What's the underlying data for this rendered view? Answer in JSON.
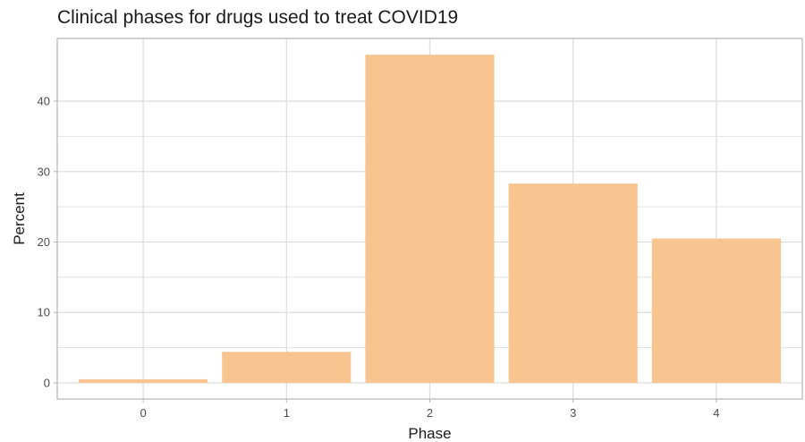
{
  "chart_data": {
    "type": "bar",
    "title": "Clinical phases for drugs used to treat COVID19",
    "xlabel": "Phase",
    "ylabel": "Percent",
    "categories": [
      "0",
      "1",
      "2",
      "3",
      "4"
    ],
    "values": [
      0.5,
      4.4,
      46.6,
      28.3,
      20.5
    ],
    "ylim": [
      -2.3,
      48.9
    ],
    "yticks": [
      0,
      10,
      20,
      30,
      40
    ],
    "grid": true,
    "bar_color": "#F8C591",
    "grid_color": "#DEDEDE",
    "panel_border_color": "#B3B3B3"
  }
}
